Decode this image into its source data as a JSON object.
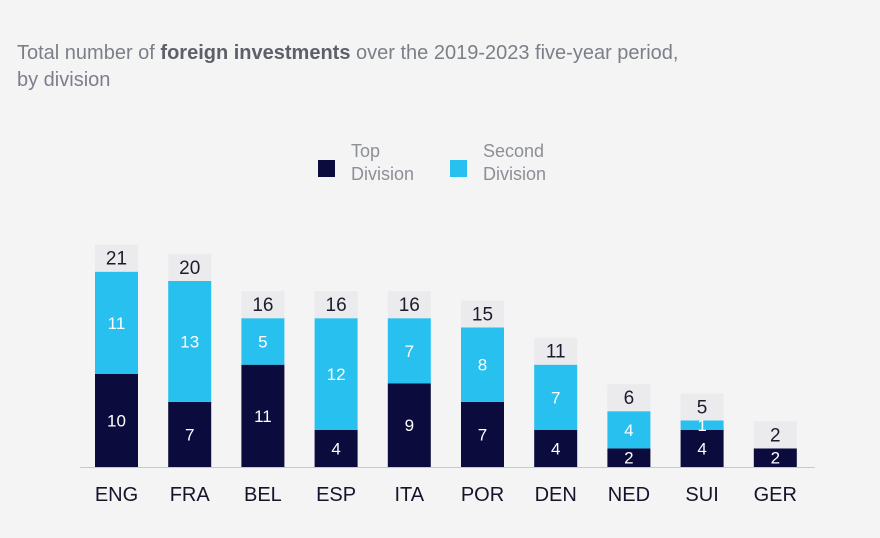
{
  "title": {
    "prefix": "Total number of ",
    "bold": "foreign investments",
    "suffix": " over the 2019-2023 five-year period,",
    "line2": "by division"
  },
  "legend": [
    {
      "line1": "Top",
      "line2": "Division",
      "color": "#0b0c3d"
    },
    {
      "line1": "Second",
      "line2": "Division",
      "color": "#28c0ee"
    }
  ],
  "chart_data": {
    "type": "bar",
    "stacked": true,
    "categories": [
      "ENG",
      "FRA",
      "BEL",
      "ESP",
      "ITA",
      "POR",
      "DEN",
      "NED",
      "SUI",
      "GER"
    ],
    "series": [
      {
        "name": "Top Division",
        "values": [
          10,
          7,
          11,
          4,
          9,
          7,
          4,
          2,
          4,
          2
        ],
        "color": "#0b0c3d"
      },
      {
        "name": "Second Division",
        "values": [
          11,
          13,
          5,
          12,
          7,
          8,
          7,
          4,
          1,
          0
        ],
        "color": "#28c0ee"
      }
    ],
    "totals": [
      21,
      20,
      16,
      16,
      16,
      15,
      11,
      6,
      5,
      2
    ],
    "grid": false,
    "legend_position": "top"
  }
}
